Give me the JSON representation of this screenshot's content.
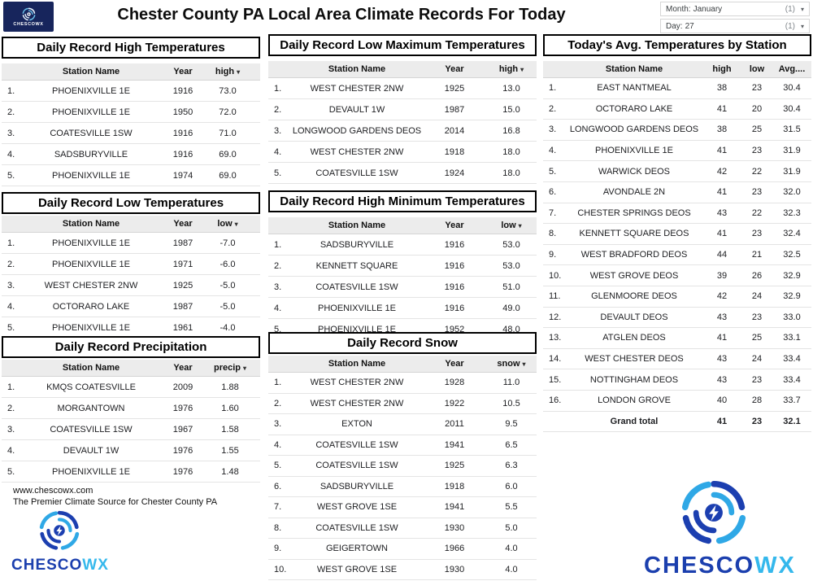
{
  "brand": {
    "name": "CHESCOWX",
    "name_main": "CHESCO",
    "name_accent": "WX",
    "color_main": "#1b3fae",
    "color_accent": "#35b8ec"
  },
  "header": {
    "title": "Chester County PA Local Area Climate Records For Today",
    "filters": [
      {
        "label": "Month:",
        "value": "January",
        "count": "(1)"
      },
      {
        "label": "Day:",
        "value": "27",
        "count": "(1)"
      }
    ]
  },
  "footer": {
    "website": "www.chescowx.com",
    "tagline": "The Premier Climate Source for Chester County PA"
  },
  "tables": {
    "record_high": {
      "title": "Daily Record High Temperatures",
      "columns": [
        {
          "label": "Station Name"
        },
        {
          "label": "Year"
        },
        {
          "label": "high",
          "sorted": true
        }
      ],
      "rows": [
        {
          "rank": "1.",
          "cells": [
            "PHOENIXVILLE 1E",
            "1916",
            "73.0"
          ]
        },
        {
          "rank": "2.",
          "cells": [
            "PHOENIXVILLE 1E",
            "1950",
            "72.0"
          ]
        },
        {
          "rank": "3.",
          "cells": [
            "COATESVILLE 1SW",
            "1916",
            "71.0"
          ]
        },
        {
          "rank": "4.",
          "cells": [
            "SADSBURYVILLE",
            "1916",
            "69.0"
          ]
        },
        {
          "rank": "5.",
          "cells": [
            "PHOENIXVILLE 1E",
            "1974",
            "69.0"
          ]
        }
      ]
    },
    "record_low": {
      "title": "Daily Record Low Temperatures",
      "columns": [
        {
          "label": "Station Name"
        },
        {
          "label": "Year"
        },
        {
          "label": "low",
          "sorted": true
        }
      ],
      "rows": [
        {
          "rank": "1.",
          "cells": [
            "PHOENIXVILLE 1E",
            "1987",
            "-7.0"
          ]
        },
        {
          "rank": "2.",
          "cells": [
            "PHOENIXVILLE 1E",
            "1971",
            "-6.0"
          ]
        },
        {
          "rank": "3.",
          "cells": [
            "WEST CHESTER 2NW",
            "1925",
            "-5.0"
          ]
        },
        {
          "rank": "4.",
          "cells": [
            "OCTORARO LAKE",
            "1987",
            "-5.0"
          ]
        },
        {
          "rank": "5.",
          "cells": [
            "PHOENIXVILLE 1E",
            "1961",
            "-4.0"
          ]
        }
      ]
    },
    "precip": {
      "title": "Daily Record Precipitation",
      "columns": [
        {
          "label": "Station Name"
        },
        {
          "label": "Year"
        },
        {
          "label": "precip",
          "sorted": true
        }
      ],
      "rows": [
        {
          "rank": "1.",
          "cells": [
            "KMQS COATESVILLE",
            "2009",
            "1.88"
          ]
        },
        {
          "rank": "2.",
          "cells": [
            "MORGANTOWN",
            "1976",
            "1.60"
          ]
        },
        {
          "rank": "3.",
          "cells": [
            "COATESVILLE 1SW",
            "1967",
            "1.58"
          ]
        },
        {
          "rank": "4.",
          "cells": [
            "DEVAULT 1W",
            "1976",
            "1.55"
          ]
        },
        {
          "rank": "5.",
          "cells": [
            "PHOENIXVILLE 1E",
            "1976",
            "1.48"
          ]
        }
      ]
    },
    "low_max": {
      "title": "Daily Record Low Maximum Temperatures",
      "columns": [
        {
          "label": "Station Name"
        },
        {
          "label": "Year"
        },
        {
          "label": "high",
          "sorted": true
        }
      ],
      "rows": [
        {
          "rank": "1.",
          "cells": [
            "WEST CHESTER 2NW",
            "1925",
            "13.0"
          ]
        },
        {
          "rank": "2.",
          "cells": [
            "DEVAULT 1W",
            "1987",
            "15.0"
          ]
        },
        {
          "rank": "3.",
          "cells": [
            "LONGWOOD GARDENS DEOS",
            "2014",
            "16.8"
          ]
        },
        {
          "rank": "4.",
          "cells": [
            "WEST CHESTER 2NW",
            "1918",
            "18.0"
          ]
        },
        {
          "rank": "5.",
          "cells": [
            "COATESVILLE 1SW",
            "1924",
            "18.0"
          ]
        }
      ]
    },
    "high_min": {
      "title": "Daily Record High Minimum Temperatures",
      "columns": [
        {
          "label": "Station Name"
        },
        {
          "label": "Year"
        },
        {
          "label": "low",
          "sorted": true
        }
      ],
      "rows": [
        {
          "rank": "1.",
          "cells": [
            "SADSBURYVILLE",
            "1916",
            "53.0"
          ]
        },
        {
          "rank": "2.",
          "cells": [
            "KENNETT SQUARE",
            "1916",
            "53.0"
          ]
        },
        {
          "rank": "3.",
          "cells": [
            "COATESVILLE 1SW",
            "1916",
            "51.0"
          ]
        },
        {
          "rank": "4.",
          "cells": [
            "PHOENIXVILLE 1E",
            "1916",
            "49.0"
          ]
        },
        {
          "rank": "5.",
          "cells": [
            "PHOENIXVILLE 1E",
            "1952",
            "48.0"
          ]
        }
      ]
    },
    "snow": {
      "title": "Daily Record Snow",
      "columns": [
        {
          "label": "Station Name"
        },
        {
          "label": "Year"
        },
        {
          "label": "snow",
          "sorted": true
        }
      ],
      "rows": [
        {
          "rank": "1.",
          "cells": [
            "WEST CHESTER 2NW",
            "1928",
            "11.0"
          ]
        },
        {
          "rank": "2.",
          "cells": [
            "WEST CHESTER 2NW",
            "1922",
            "10.5"
          ]
        },
        {
          "rank": "3.",
          "cells": [
            "EXTON",
            "2011",
            "9.5"
          ]
        },
        {
          "rank": "4.",
          "cells": [
            "COATESVILLE 1SW",
            "1941",
            "6.5"
          ]
        },
        {
          "rank": "5.",
          "cells": [
            "COATESVILLE 1SW",
            "1925",
            "6.3"
          ]
        },
        {
          "rank": "6.",
          "cells": [
            "SADSBURYVILLE",
            "1918",
            "6.0"
          ]
        },
        {
          "rank": "7.",
          "cells": [
            "WEST GROVE 1SE",
            "1941",
            "5.5"
          ]
        },
        {
          "rank": "8.",
          "cells": [
            "COATESVILLE 1SW",
            "1930",
            "5.0"
          ]
        },
        {
          "rank": "9.",
          "cells": [
            "GEIGERTOWN",
            "1966",
            "4.0"
          ]
        },
        {
          "rank": "10.",
          "cells": [
            "WEST GROVE 1SE",
            "1930",
            "4.0"
          ]
        }
      ]
    },
    "avg": {
      "title": "Today's Avg. Temperatures by Station",
      "columns": [
        {
          "label": "Station Name"
        },
        {
          "label": "high"
        },
        {
          "label": "low"
        },
        {
          "label": "Avg...."
        }
      ],
      "rows": [
        {
          "rank": "1.",
          "cells": [
            "EAST NANTMEAL",
            "38",
            "23",
            "30.4"
          ]
        },
        {
          "rank": "2.",
          "cells": [
            "OCTORARO LAKE",
            "41",
            "20",
            "30.4"
          ]
        },
        {
          "rank": "3.",
          "cells": [
            "LONGWOOD GARDENS DEOS",
            "38",
            "25",
            "31.5"
          ]
        },
        {
          "rank": "4.",
          "cells": [
            "PHOENIXVILLE 1E",
            "41",
            "23",
            "31.9"
          ]
        },
        {
          "rank": "5.",
          "cells": [
            "WARWICK DEOS",
            "42",
            "22",
            "31.9"
          ]
        },
        {
          "rank": "6.",
          "cells": [
            "AVONDALE 2N",
            "41",
            "23",
            "32.0"
          ]
        },
        {
          "rank": "7.",
          "cells": [
            "CHESTER SPRINGS DEOS",
            "43",
            "22",
            "32.3"
          ]
        },
        {
          "rank": "8.",
          "cells": [
            "KENNETT SQUARE DEOS",
            "41",
            "23",
            "32.4"
          ]
        },
        {
          "rank": "9.",
          "cells": [
            "WEST BRADFORD DEOS",
            "44",
            "21",
            "32.5"
          ]
        },
        {
          "rank": "10.",
          "cells": [
            "WEST GROVE DEOS",
            "39",
            "26",
            "32.9"
          ]
        },
        {
          "rank": "11.",
          "cells": [
            "GLENMOORE DEOS",
            "42",
            "24",
            "32.9"
          ]
        },
        {
          "rank": "12.",
          "cells": [
            "DEVAULT DEOS",
            "43",
            "23",
            "33.0"
          ]
        },
        {
          "rank": "13.",
          "cells": [
            "ATGLEN DEOS",
            "41",
            "25",
            "33.1"
          ]
        },
        {
          "rank": "14.",
          "cells": [
            "WEST CHESTER DEOS",
            "43",
            "24",
            "33.4"
          ]
        },
        {
          "rank": "15.",
          "cells": [
            "NOTTINGHAM DEOS",
            "43",
            "23",
            "33.4"
          ]
        },
        {
          "rank": "16.",
          "cells": [
            "LONDON GROVE",
            "40",
            "28",
            "33.7"
          ]
        },
        {
          "rank": "",
          "cells": [
            "Grand total",
            "41",
            "23",
            "32.1"
          ],
          "total": true
        }
      ]
    }
  }
}
